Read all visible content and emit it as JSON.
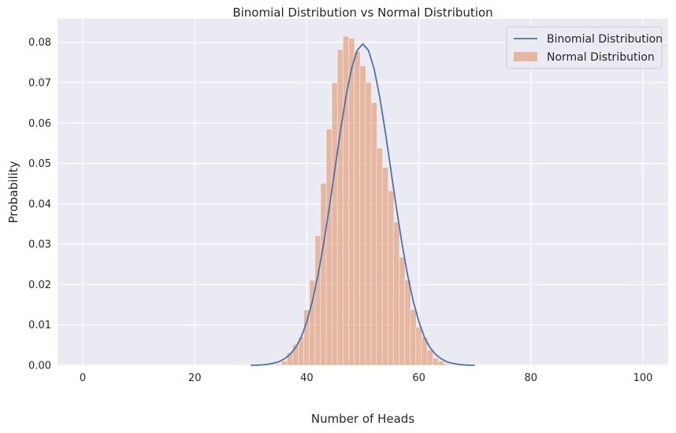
{
  "chart_data": {
    "type": "bar",
    "title": "Binomial Distribution vs Normal Distribution",
    "xlabel": "Number of Heads",
    "ylabel": "Probability",
    "xlim": [
      -4.5,
      104.5
    ],
    "ylim": [
      0,
      0.0858
    ],
    "xticks": [
      0,
      20,
      40,
      60,
      80,
      100
    ],
    "yticks": [
      0.0,
      0.01,
      0.02,
      0.03,
      0.04,
      0.05,
      0.06,
      0.07,
      0.08
    ],
    "grid": true,
    "legend_position": "top-right",
    "colors": {
      "background": "#eaeaf2",
      "grid": "#ffffff",
      "line": "#4c72b0",
      "bars": "#dd8452"
    },
    "series": [
      {
        "name": "Binomial Distribution",
        "type": "line",
        "x": [
          30,
          31,
          32,
          33,
          34,
          35,
          36,
          37,
          38,
          39,
          40,
          41,
          42,
          43,
          44,
          45,
          46,
          47,
          48,
          49,
          50,
          51,
          52,
          53,
          54,
          55,
          56,
          57,
          58,
          59,
          60,
          61,
          62,
          63,
          64,
          65,
          66,
          67,
          68,
          69,
          70
        ],
        "y": [
          2e-05,
          4e-05,
          0.0001,
          0.00023,
          0.0005,
          0.00086,
          0.0016,
          0.00269,
          0.0044,
          0.00693,
          0.01084,
          0.0159,
          0.02229,
          0.03009,
          0.03895,
          0.04847,
          0.05796,
          0.06659,
          0.07353,
          0.07803,
          0.07959,
          0.07803,
          0.07353,
          0.06659,
          0.05796,
          0.04847,
          0.03895,
          0.03009,
          0.02229,
          0.0159,
          0.01084,
          0.00693,
          0.0044,
          0.00269,
          0.0016,
          0.00086,
          0.0005,
          0.00023,
          0.0001,
          4e-05,
          2e-05
        ]
      },
      {
        "name": "Normal Distribution",
        "type": "histogram",
        "bin_width": 1.08,
        "bins": [
          35,
          36,
          37,
          38,
          39,
          40,
          41,
          42,
          43,
          44,
          45,
          46,
          47,
          48,
          49,
          50,
          51,
          52,
          53,
          54,
          55,
          56,
          57,
          58,
          59,
          60,
          61,
          62,
          63,
          64,
          65
        ],
        "values": [
          0.0003,
          0.0011,
          0.0032,
          0.0052,
          0.0071,
          0.0137,
          0.0211,
          0.0321,
          0.0451,
          0.0585,
          0.07,
          0.0782,
          0.0815,
          0.081,
          0.0778,
          0.0742,
          0.0701,
          0.0651,
          0.0538,
          0.049,
          0.0432,
          0.0355,
          0.0268,
          0.0211,
          0.0138,
          0.0095,
          0.007,
          0.0038,
          0.0018,
          0.0011,
          0.0003
        ]
      }
    ]
  }
}
